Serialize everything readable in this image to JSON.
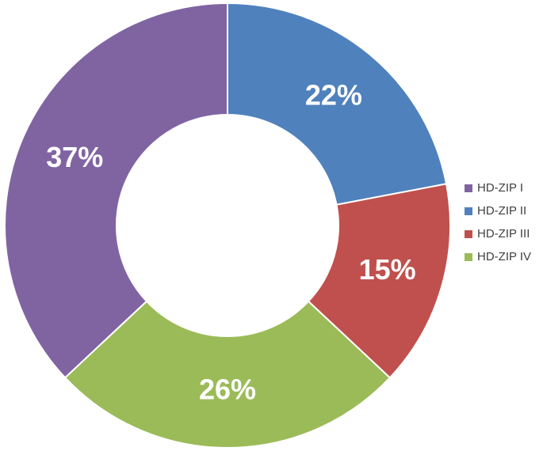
{
  "chart_data": {
    "type": "donut",
    "categories": [
      "HD-ZIP I",
      "HD-ZIP II",
      "HD-ZIP III",
      "HD-ZIP IV"
    ],
    "values": [
      37,
      22,
      15,
      26
    ],
    "value_labels": [
      "37%",
      "22%",
      "15%",
      "26%"
    ],
    "colors": [
      "#8064a2",
      "#4f81bd",
      "#c0504d",
      "#9bbb59"
    ],
    "legend": "right"
  }
}
